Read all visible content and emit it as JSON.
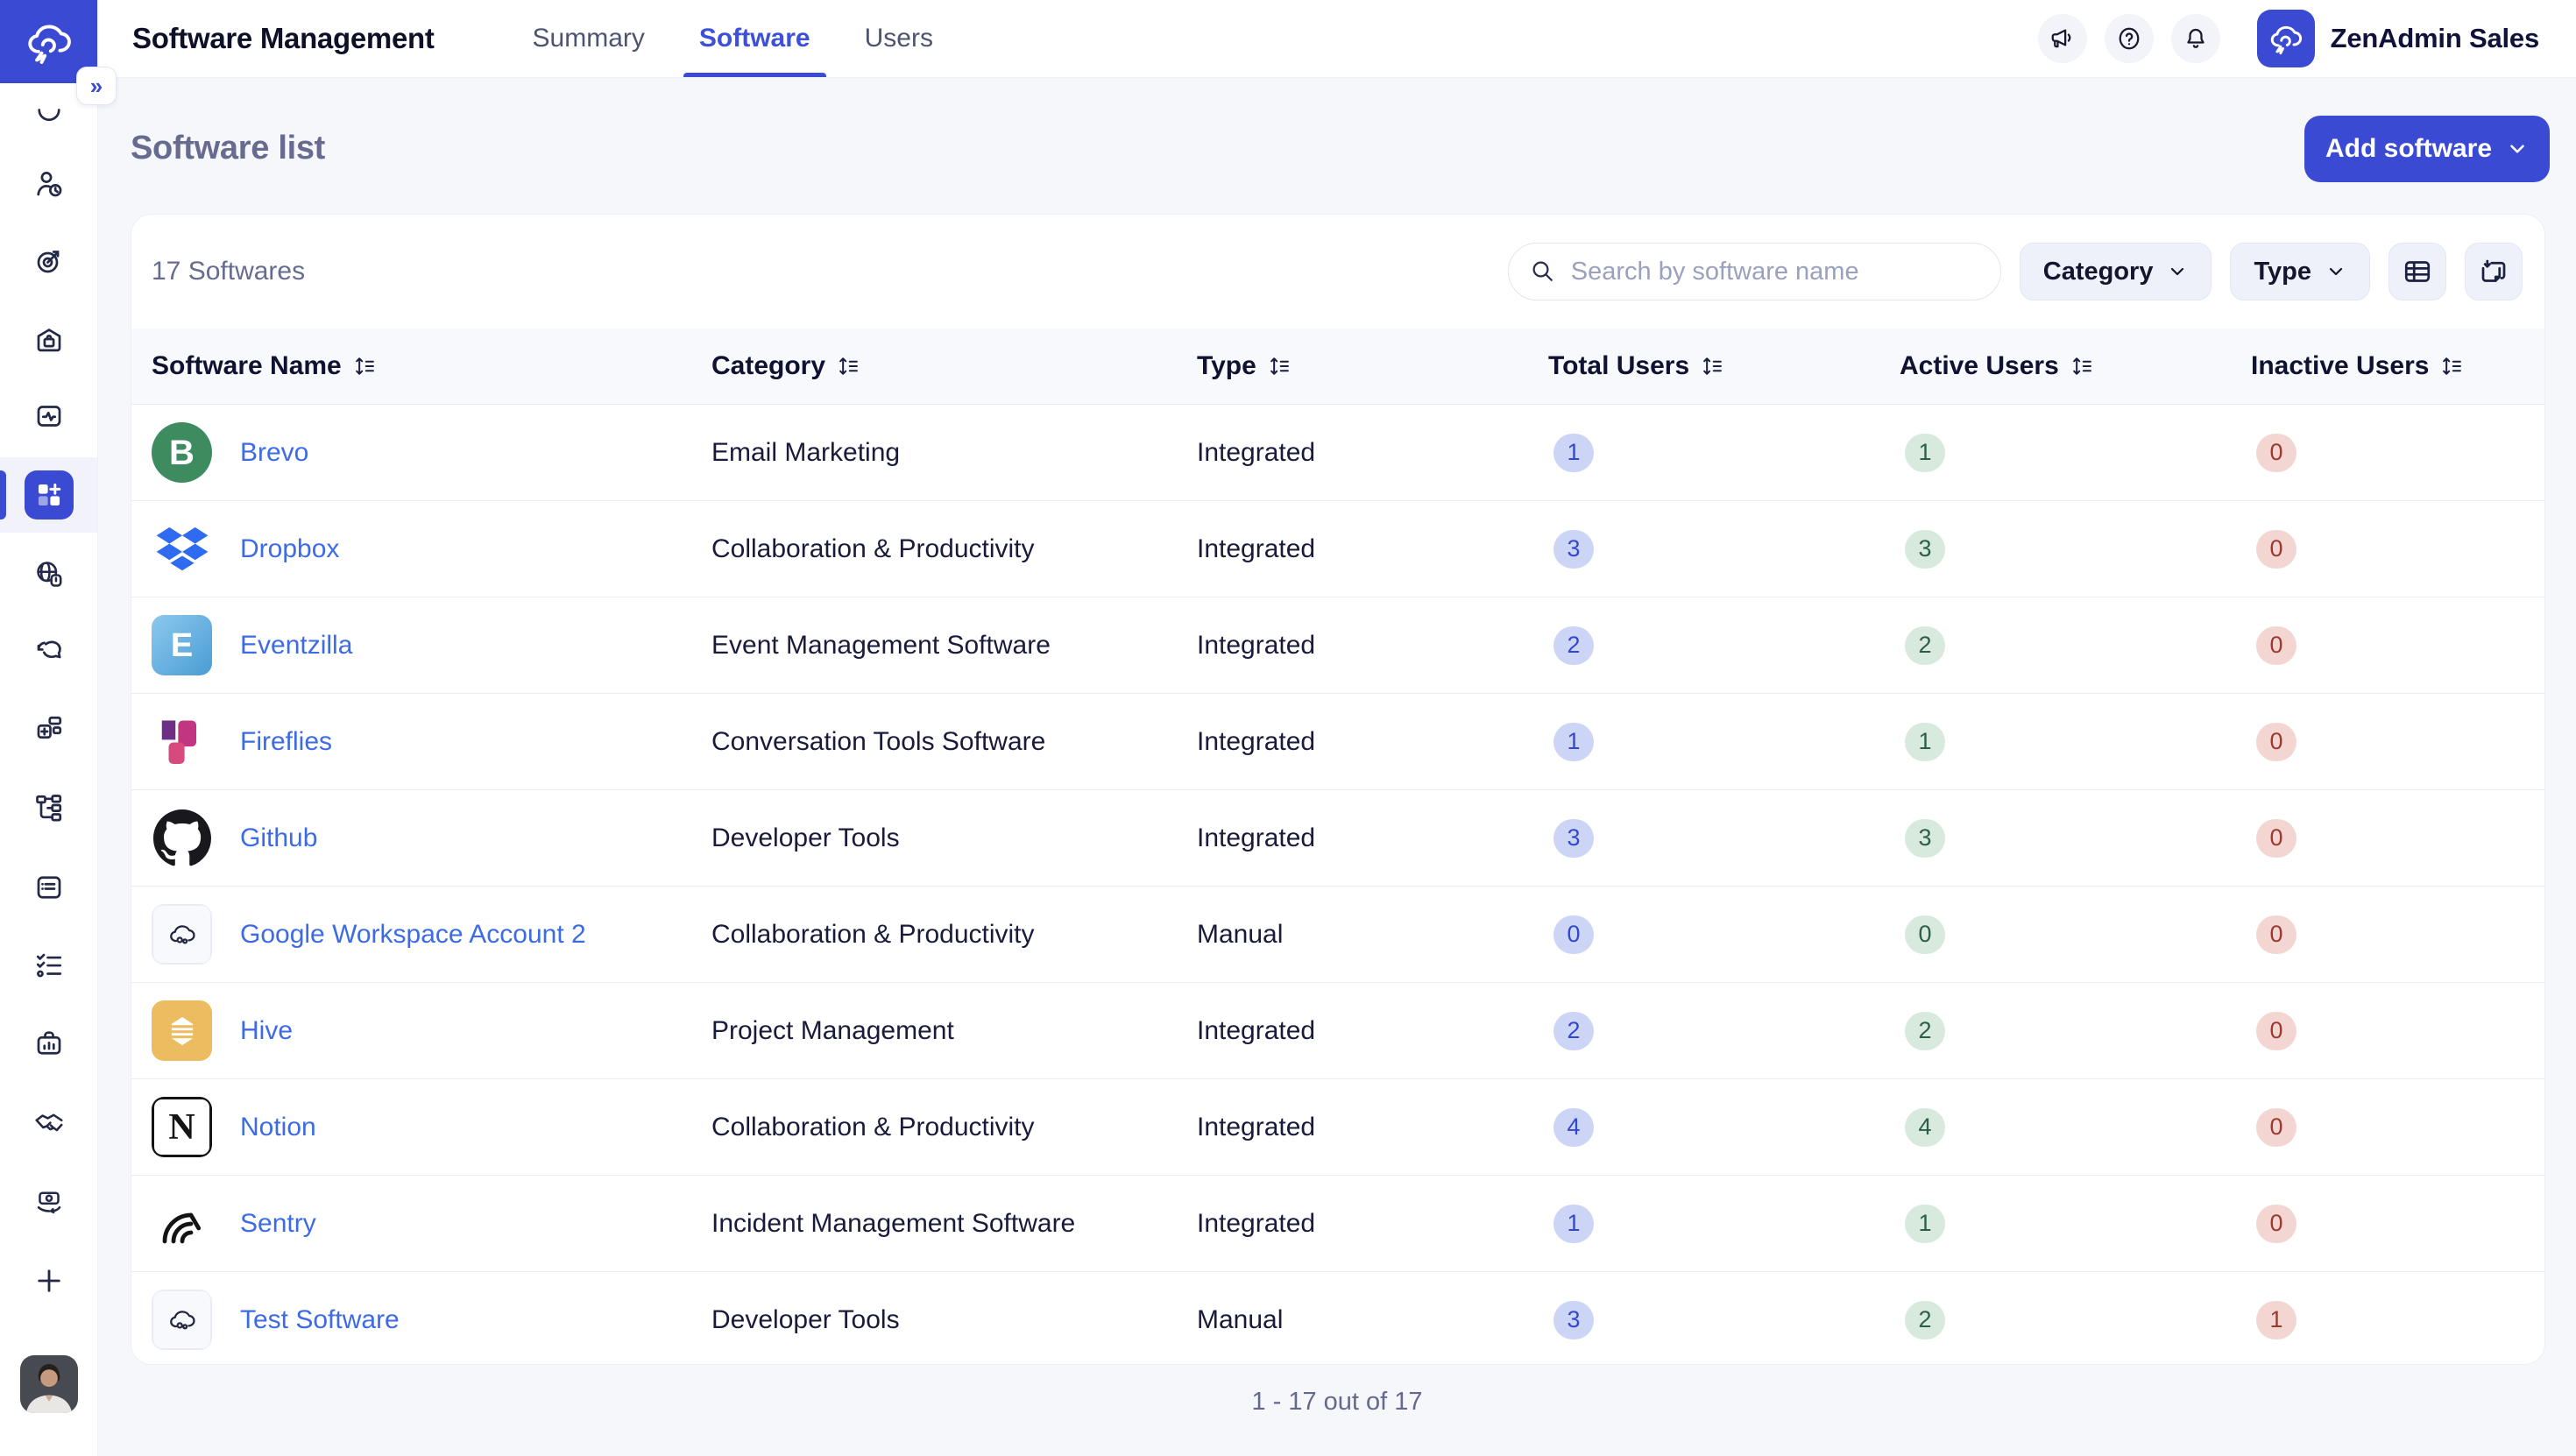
{
  "header": {
    "title": "Software Management",
    "tabs": [
      {
        "label": "Summary",
        "active": false
      },
      {
        "label": "Software",
        "active": true
      },
      {
        "label": "Users",
        "active": false
      }
    ],
    "icons": [
      "announcements-megaphone-icon",
      "help-icon",
      "notifications-bell-icon"
    ],
    "account_label": "ZenAdmin Sales"
  },
  "sidebar": {
    "expand_label": "»",
    "items": [
      {
        "icon": "clock-partial-icon"
      },
      {
        "icon": "user-activity-icon"
      },
      {
        "icon": "goals-target-icon"
      },
      {
        "icon": "company-home-icon"
      },
      {
        "icon": "asset-box-pulse-icon"
      },
      {
        "icon": "software-apps-icon",
        "active": true
      },
      {
        "icon": "web-services-globe-icon"
      },
      {
        "icon": "conversations-icon"
      },
      {
        "icon": "integrations-blocks-icon"
      },
      {
        "icon": "org-chart-icon"
      },
      {
        "icon": "notes-card-icon"
      },
      {
        "icon": "checklist-icon"
      },
      {
        "icon": "briefcase-report-icon"
      },
      {
        "icon": "handshake-icon"
      },
      {
        "icon": "money-flow-icon"
      },
      {
        "icon": "add-plus-icon"
      }
    ]
  },
  "page": {
    "title": "Software list",
    "add_button_label": "Add software",
    "count_label": "17 Softwares",
    "search_placeholder": "Search by software name",
    "filters": [
      {
        "label": "Category"
      },
      {
        "label": "Type"
      }
    ],
    "view_buttons": [
      "table-view-icon",
      "export-import-icon"
    ],
    "pagination": "1 - 17 out of 17"
  },
  "table": {
    "columns": [
      "Software Name",
      "Category",
      "Type",
      "Total Users",
      "Active Users",
      "Inactive Users"
    ],
    "rows": [
      {
        "name": "Brevo",
        "category": "Email Marketing",
        "type": "Integrated",
        "total": "1",
        "active": "1",
        "inactive": "0",
        "logo": "brevo",
        "logo_letter": "B"
      },
      {
        "name": "Dropbox",
        "category": "Collaboration & Productivity",
        "type": "Integrated",
        "total": "3",
        "active": "3",
        "inactive": "0",
        "logo": "dropbox"
      },
      {
        "name": "Eventzilla",
        "category": "Event Management Software",
        "type": "Integrated",
        "total": "2",
        "active": "2",
        "inactive": "0",
        "logo": "eventzilla",
        "logo_letter": "E"
      },
      {
        "name": "Fireflies",
        "category": "Conversation Tools Software",
        "type": "Integrated",
        "total": "1",
        "active": "1",
        "inactive": "0",
        "logo": "fireflies"
      },
      {
        "name": "Github",
        "category": "Developer Tools",
        "type": "Integrated",
        "total": "3",
        "active": "3",
        "inactive": "0",
        "logo": "github"
      },
      {
        "name": "Google Workspace Account 2",
        "category": "Collaboration & Productivity",
        "type": "Manual",
        "total": "0",
        "active": "0",
        "inactive": "0",
        "logo": "placeholder"
      },
      {
        "name": "Hive",
        "category": "Project Management",
        "type": "Integrated",
        "total": "2",
        "active": "2",
        "inactive": "0",
        "logo": "hive"
      },
      {
        "name": "Notion",
        "category": "Collaboration & Productivity",
        "type": "Integrated",
        "total": "4",
        "active": "4",
        "inactive": "0",
        "logo": "notion",
        "logo_letter": "N"
      },
      {
        "name": "Sentry",
        "category": "Incident Management Software",
        "type": "Integrated",
        "total": "1",
        "active": "1",
        "inactive": "0",
        "logo": "sentry"
      },
      {
        "name": "Test Software",
        "category": "Developer Tools",
        "type": "Manual",
        "total": "3",
        "active": "2",
        "inactive": "1",
        "logo": "placeholder"
      }
    ]
  },
  "colors": {
    "primary": "#3b4ad3",
    "active_tab": "#3c50d8",
    "link": "#3d6be5",
    "page_bg": "#f6f7fb",
    "muted_text": "#676b8f",
    "badge_total_bg": "#cdd5f6",
    "badge_total_fg": "#3348cf",
    "badge_active_bg": "#d8e9dd",
    "badge_active_fg": "#2c5f43",
    "badge_inactive_bg": "#f3d6d2",
    "badge_inactive_fg": "#9c3a30"
  }
}
